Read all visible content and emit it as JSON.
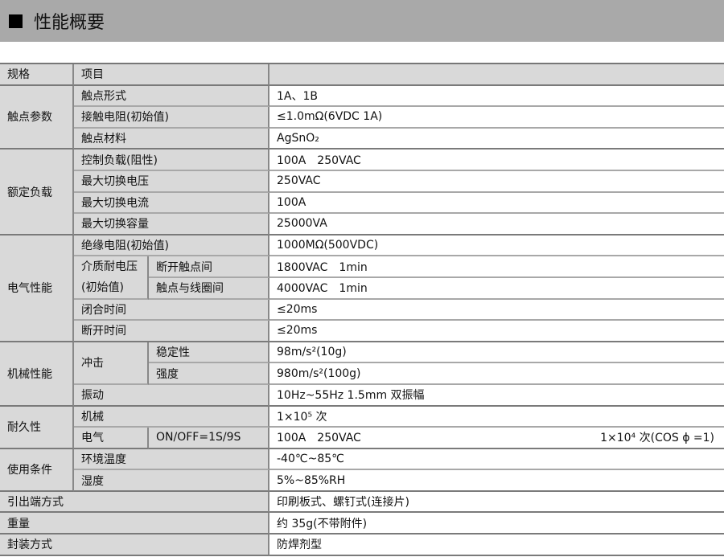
{
  "header": {
    "title": "性能概要"
  },
  "table": {
    "head": {
      "spec": "规格",
      "item": "项目",
      "value": ""
    },
    "contact": {
      "group": "触点参数",
      "r": [
        [
          "触点形式",
          "1A、1B"
        ],
        [
          "接触电阻(初始值)",
          "≤1.0mΩ(6VDC 1A)"
        ],
        [
          "触点材料",
          "AgSnO₂"
        ]
      ]
    },
    "load": {
      "group": "额定负载",
      "r": [
        [
          "控制负载(阻性)",
          "100A　250VAC"
        ],
        [
          "最大切换电压",
          "250VAC"
        ],
        [
          "最大切换电流",
          "100A"
        ],
        [
          "最大切换容量",
          "25000VA"
        ]
      ]
    },
    "elec": {
      "group": "电气性能",
      "insulation": [
        "绝缘电阻(初始值)",
        "1000MΩ(500VDC)"
      ],
      "dielectric_1": "介质耐电压",
      "dielectric_2": "(初始值)",
      "open_contacts": [
        "断开触点间",
        "1800VAC　1min"
      ],
      "contact_coil": [
        "触点与线圈间",
        "4000VAC　1min"
      ],
      "close_time": [
        "闭合时间",
        "≤20ms"
      ],
      "open_time": [
        "断开时间",
        "≤20ms"
      ]
    },
    "mech": {
      "group": "机械性能",
      "shock": "冲击",
      "stability": [
        "稳定性",
        "98m/s²(10g)"
      ],
      "strength": [
        "强度",
        "980m/s²(100g)"
      ],
      "vibration": [
        "振动",
        "10Hz~55Hz 1.5mm  双振幅"
      ]
    },
    "durability": {
      "group": "耐久性",
      "mechanical": [
        "机械",
        "1×10⁵ 次"
      ],
      "electrical": "电气",
      "cycle": "ON/OFF=1S/9S",
      "elec_value": "100A　250VAC",
      "elec_count": "1×10⁴ 次(COS ϕ =1)"
    },
    "usage": {
      "group": "使用条件",
      "temp": [
        "环境温度",
        "-40℃~85℃"
      ],
      "humidity": [
        "湿度",
        "5%~85%RH"
      ]
    },
    "terminal": [
      "引出端方式",
      "印刷板式、螺钉式(连接片)"
    ],
    "weight": [
      "重量",
      "约 35g(不带附件)"
    ],
    "package": [
      "封装方式",
      "防焊剂型"
    ]
  }
}
